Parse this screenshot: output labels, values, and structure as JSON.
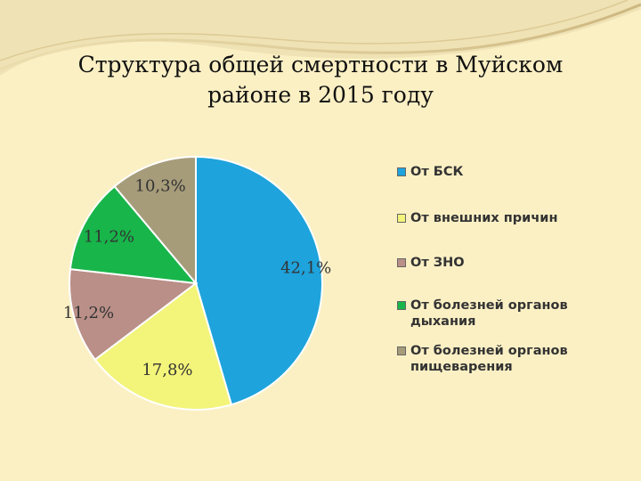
{
  "title_lines": [
    "Структура  общей смертности в Муйском",
    "районе  в 2015 году"
  ],
  "chart_data": {
    "type": "pie",
    "title": "Структура  общей смертности в Муйском районе  в 2015 году",
    "slices": [
      {
        "label": "От БСК",
        "value": 42.1,
        "data_label": "42,1%",
        "color": "#1ea3dc"
      },
      {
        "label": "От внешних причин",
        "value": 17.8,
        "data_label": "17,8%",
        "color": "#f3f47a"
      },
      {
        "label": "От ЗНО",
        "value": 11.2,
        "data_label": "11,2%",
        "color": "#b98f88"
      },
      {
        "label": "От болезней органов дыхания",
        "value": 11.2,
        "data_label": "11,2%",
        "color": "#18b54a"
      },
      {
        "label": "От болезней органов пищеварения",
        "value": 10.3,
        "data_label": "10,3%",
        "color": "#a69c7a"
      }
    ],
    "legend": {
      "placement": "right",
      "items": [
        {
          "label": "От БСК",
          "color": "#1ea3dc"
        },
        {
          "label": "От внешних причин",
          "color": "#f3f47a"
        },
        {
          "label": "От ЗНО",
          "color": "#b98f88"
        },
        {
          "label": "От болезней органов дыхания",
          "color": "#18b54a"
        },
        {
          "label": "От болезней органов пищеварения",
          "color": "#a69c7a"
        }
      ]
    }
  }
}
